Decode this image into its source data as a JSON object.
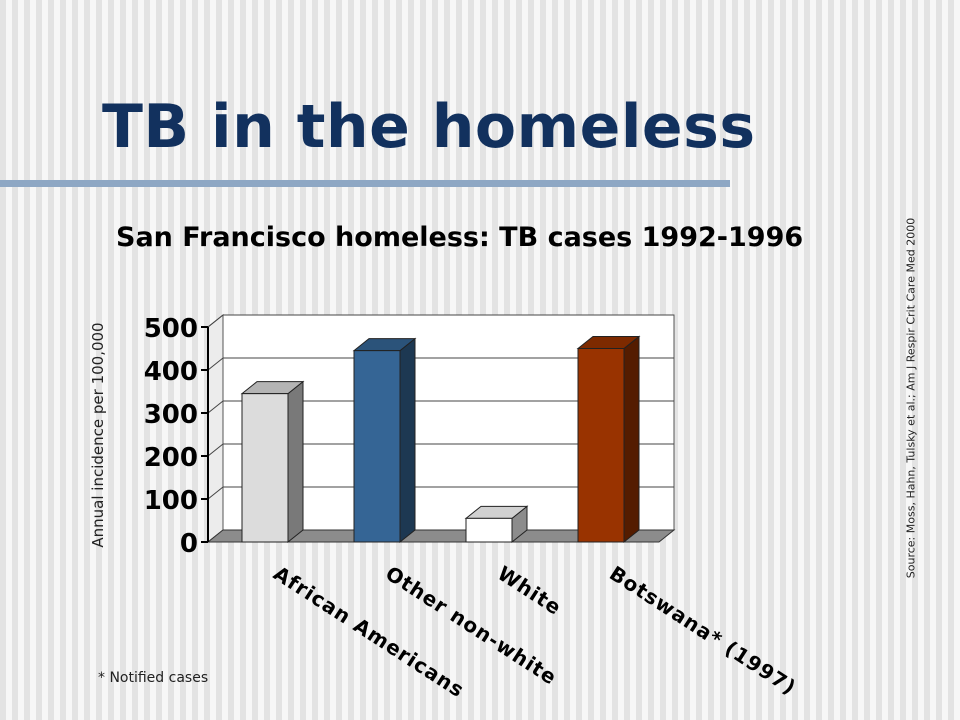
{
  "slide": {
    "title": "TB in the homeless",
    "footnote": "* Notified cases",
    "source": "Source: Moss, Hahn, Tulsky et al.; Am J Respir Crit Care Med 2000"
  },
  "colors": {
    "title": "#12315e",
    "rule": "#8ea7c4",
    "bars": [
      "#dcdcdc",
      "#356595",
      "#ffffff",
      "#993300"
    ]
  },
  "chart_data": {
    "type": "bar",
    "title": "San Francisco homeless: TB cases 1992-1996",
    "ylabel": "Annual incidence per 100,000",
    "xlabel": "",
    "categories": [
      "African Americans",
      "Other non-white",
      "White",
      "Botswana* (1997)"
    ],
    "values": [
      345,
      445,
      55,
      450
    ],
    "ylim": [
      0,
      500
    ],
    "yticks": [
      0,
      100,
      200,
      300,
      400,
      500
    ],
    "grid": true,
    "three_d": true,
    "legend": "none"
  }
}
